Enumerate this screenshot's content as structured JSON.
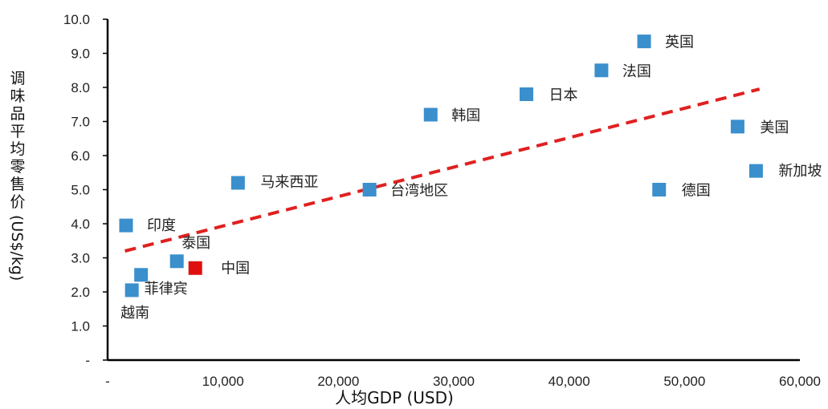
{
  "chart_data": {
    "type": "scatter",
    "xlabel": "人均GDP (USD)",
    "ylabel": "调味品平均零售价(US$/kg)",
    "xlim": [
      0,
      60000
    ],
    "ylim": [
      0,
      10
    ],
    "x_ticks": [
      "-",
      "10,000",
      "20,000",
      "30,000",
      "40,000",
      "50,000",
      "60,000"
    ],
    "y_ticks": [
      "-",
      "1.0",
      "2.0",
      "3.0",
      "4.0",
      "5.0",
      "6.0",
      "7.0",
      "8.0",
      "9.0",
      "10.0"
    ],
    "grid": false,
    "colors": {
      "default": "#3a8fcc",
      "highlight": "#e00f0f",
      "trend": "#e02020"
    },
    "points": [
      {
        "label": "英国",
        "x": 46500,
        "y": 9.35,
        "color": "#3a8fcc"
      },
      {
        "label": "法国",
        "x": 42800,
        "y": 8.5,
        "color": "#3a8fcc"
      },
      {
        "label": "日本",
        "x": 36300,
        "y": 7.8,
        "color": "#3a8fcc"
      },
      {
        "label": "韩国",
        "x": 28000,
        "y": 7.2,
        "color": "#3a8fcc"
      },
      {
        "label": "美国",
        "x": 54600,
        "y": 6.85,
        "color": "#3a8fcc"
      },
      {
        "label": "新加坡",
        "x": 56200,
        "y": 5.55,
        "color": "#3a8fcc"
      },
      {
        "label": "德国",
        "x": 47800,
        "y": 5.0,
        "color": "#3a8fcc"
      },
      {
        "label": "马来西亚",
        "x": 11300,
        "y": 5.2,
        "color": "#3a8fcc"
      },
      {
        "label": "台湾地区",
        "x": 22700,
        "y": 5.0,
        "color": "#3a8fcc"
      },
      {
        "label": "印度",
        "x": 1600,
        "y": 3.95,
        "color": "#3a8fcc"
      },
      {
        "label": "泰国",
        "x": 6000,
        "y": 2.9,
        "color": "#3a8fcc"
      },
      {
        "label": "中国",
        "x": 7600,
        "y": 2.7,
        "color": "#e00f0f"
      },
      {
        "label": "菲律宾",
        "x": 2900,
        "y": 2.5,
        "color": "#3a8fcc"
      },
      {
        "label": "越南",
        "x": 2100,
        "y": 2.05,
        "color": "#3a8fcc"
      }
    ],
    "trendline": {
      "x": [
        1500,
        56500
      ],
      "y": [
        3.2,
        7.95
      ]
    }
  }
}
